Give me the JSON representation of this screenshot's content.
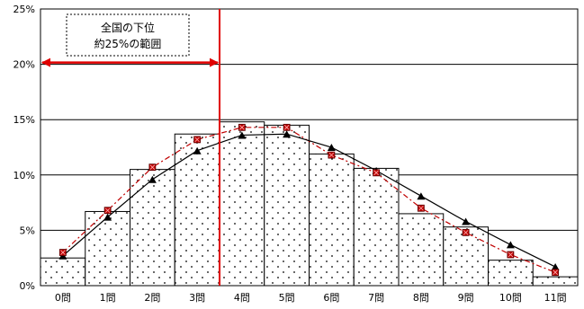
{
  "chart_data": {
    "type": "bar",
    "title": "",
    "xlabel": "",
    "ylabel": "",
    "categories": [
      "0問",
      "1問",
      "2問",
      "3問",
      "4問",
      "5問",
      "6問",
      "7問",
      "8問",
      "9問",
      "10問",
      "11問"
    ],
    "ylim": [
      0,
      25
    ],
    "yticks": [
      "0%",
      "5%",
      "10%",
      "15%",
      "20%",
      "25%"
    ],
    "grid": "horizontal",
    "series": [
      {
        "kind": "bar",
        "values": [
          2.5,
          6.7,
          10.5,
          13.7,
          14.8,
          14.5,
          11.9,
          10.6,
          6.5,
          5.3,
          2.3,
          0.8
        ],
        "fill": "dotted"
      },
      {
        "kind": "line",
        "marker": "square",
        "values": [
          3.0,
          6.8,
          10.7,
          13.2,
          14.3,
          14.3,
          11.8,
          10.2,
          7.0,
          4.8,
          2.8,
          1.2
        ],
        "color": "#c00000"
      },
      {
        "kind": "line",
        "marker": "triangle",
        "values": [
          2.7,
          6.2,
          9.6,
          12.2,
          13.6,
          13.7,
          12.5,
          10.4,
          8.1,
          5.8,
          3.7,
          1.7
        ],
        "color": "#000000"
      }
    ],
    "annotation": {
      "line1": "全国の下位",
      "line2": "約25%の範囲",
      "boundary_after_category": 3,
      "arrow_level": 20
    }
  }
}
